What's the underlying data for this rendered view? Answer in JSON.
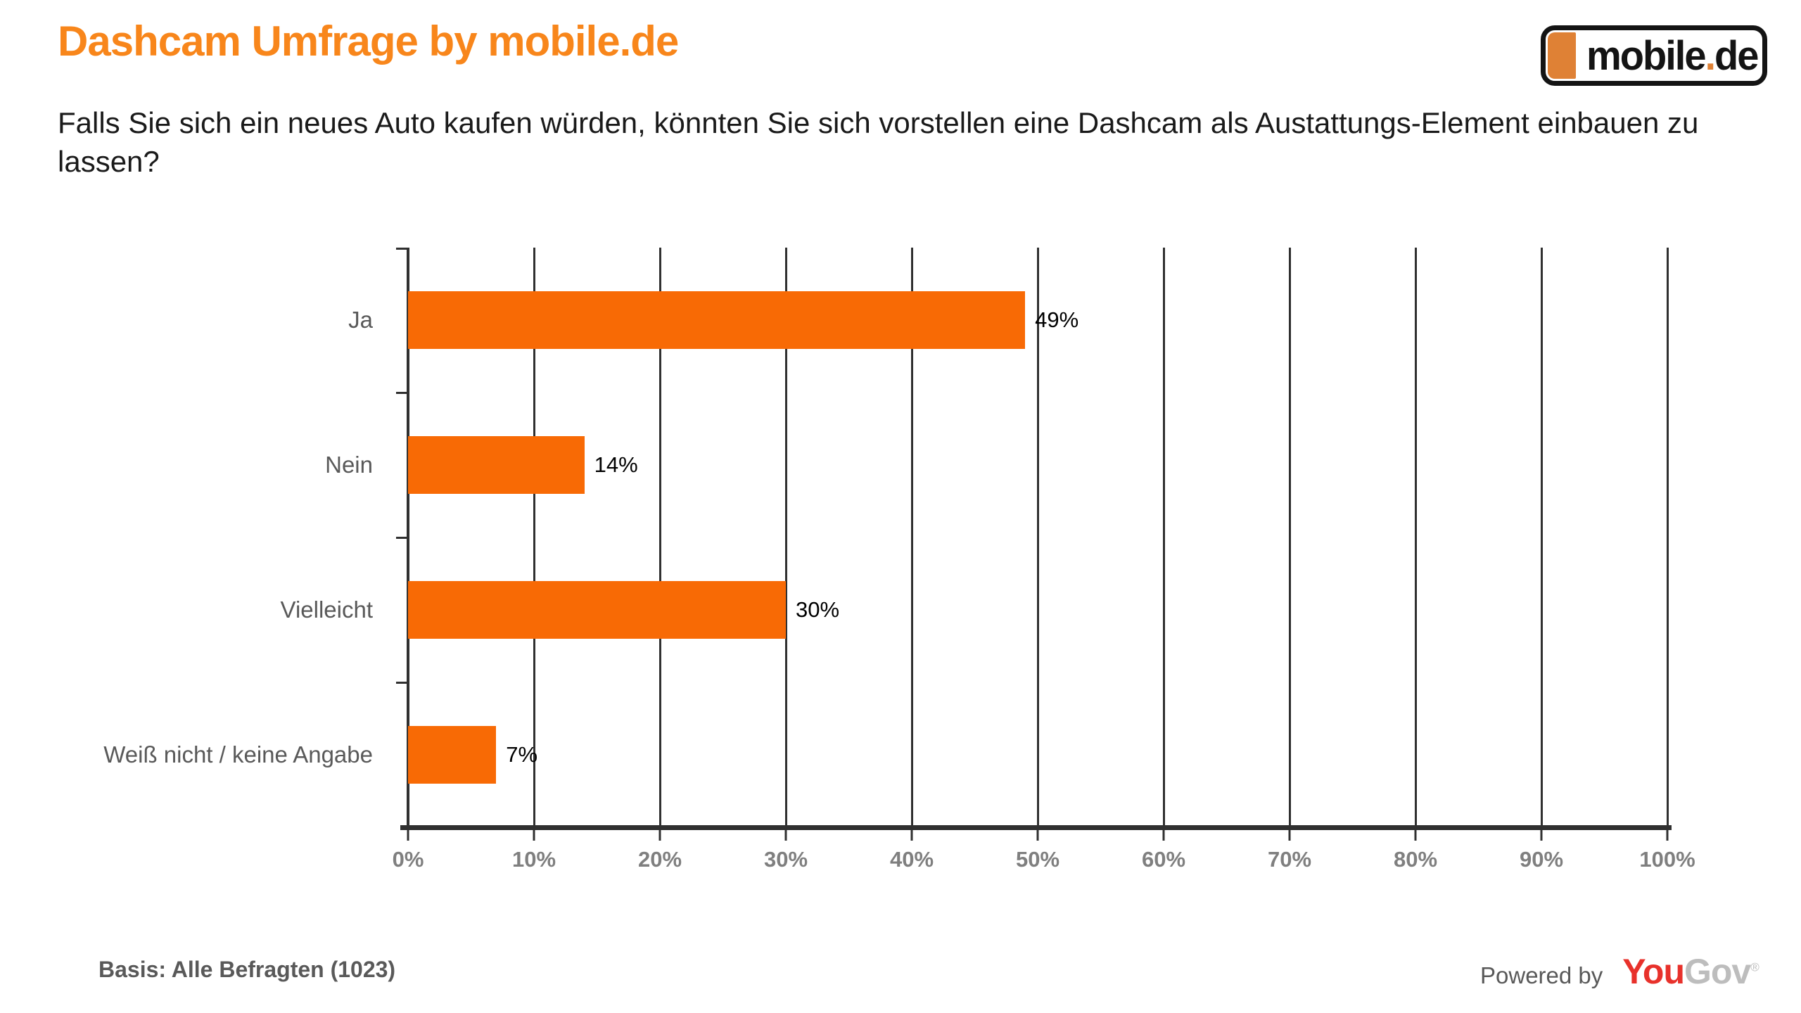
{
  "page": {
    "title": "Dashcam Umfrage by mobile.de",
    "question": "Falls Sie sich ein neues Auto kaufen würden, könnten Sie sich vorstellen eine Dashcam als Austattungs-Element einbauen zu lassen?",
    "basis": "Basis: Alle Befragten (1023)",
    "powered_by": "Powered by"
  },
  "logo": {
    "text_main": "mobile",
    "dot": ".",
    "text_suffix": "de"
  },
  "yougov": {
    "part_red": "You",
    "part_gray": "Gov",
    "registered": "®"
  },
  "colors": {
    "title_orange": "#F8861B",
    "bar_orange": "#F86A05",
    "logo_orange": "#DF8135",
    "axis_dark": "#303030",
    "label_gray": "#595959",
    "tick_gray": "#7F7F7F",
    "yougov_red": "#E8312B",
    "yougov_gray": "#BDBDBD"
  },
  "chart_data": {
    "type": "bar",
    "orientation": "horizontal",
    "title": "",
    "xlabel": "",
    "ylabel": "",
    "categories": [
      "Ja",
      "Nein",
      "Vielleicht",
      "Weiß nicht / keine Angabe"
    ],
    "values": [
      49,
      14,
      30,
      7
    ],
    "value_labels": [
      "49%",
      "14%",
      "30%",
      "7%"
    ],
    "xlim": [
      0,
      100
    ],
    "x_tick_step": 10,
    "x_tick_labels": [
      "0%",
      "10%",
      "20%",
      "30%",
      "40%",
      "50%",
      "60%",
      "70%",
      "80%",
      "90%",
      "100%"
    ],
    "grid": "vertical",
    "legend": "none",
    "bar_color": "#F86A05"
  }
}
